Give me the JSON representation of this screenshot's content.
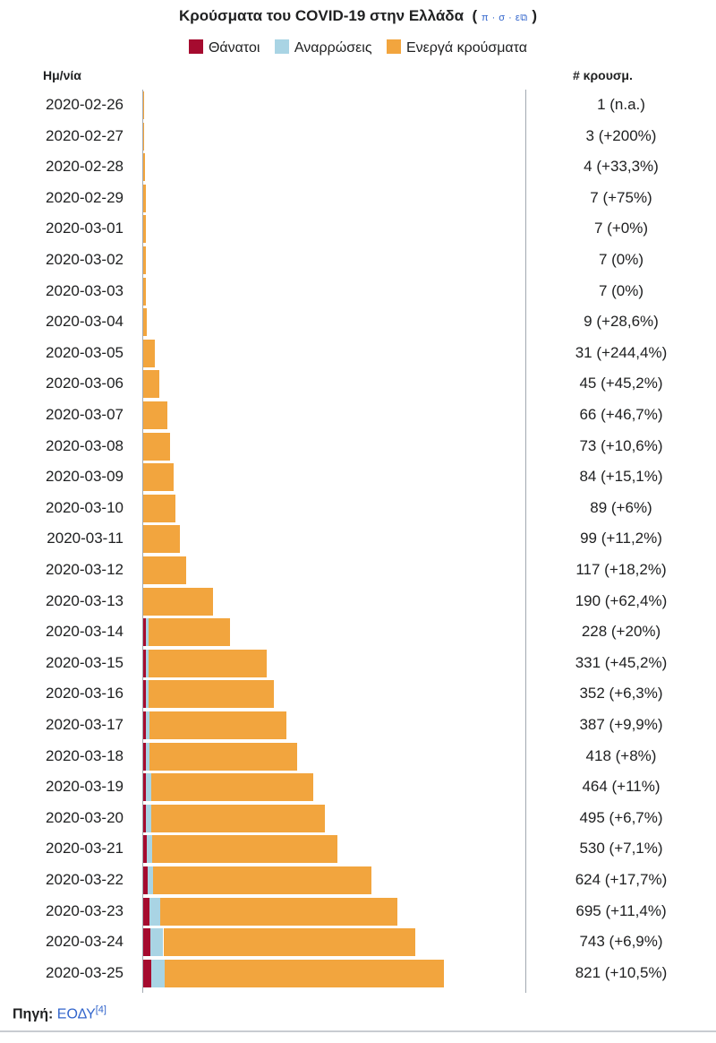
{
  "chart_data": {
    "type": "bar",
    "orientation": "horizontal",
    "stacked": true,
    "title": "Κρούσματα του COVID-19 στην Ελλάδα",
    "template_links": "π · σ · ε",
    "legend": [
      "Θάνατοι",
      "Αναρρώσεις",
      "Ενεργά κρούσματα"
    ],
    "colors": {
      "deaths": "#a50b2f",
      "recoveries": "#a9d4e4",
      "active": "#f2a53e"
    },
    "date_header": "Ημ/νία",
    "cases_header": "# κρουσμ.",
    "xlim": [
      0,
      821
    ],
    "rows": [
      {
        "date": "2020-02-26",
        "deaths": 0,
        "recoveries": 0,
        "active": 1,
        "label": "1 (n.a.)"
      },
      {
        "date": "2020-02-27",
        "deaths": 0,
        "recoveries": 0,
        "active": 3,
        "label": "3 (+200%)"
      },
      {
        "date": "2020-02-28",
        "deaths": 0,
        "recoveries": 0,
        "active": 4,
        "label": "4 (+33,3%)"
      },
      {
        "date": "2020-02-29",
        "deaths": 0,
        "recoveries": 0,
        "active": 7,
        "label": "7 (+75%)"
      },
      {
        "date": "2020-03-01",
        "deaths": 0,
        "recoveries": 0,
        "active": 7,
        "label": "7 (+0%)"
      },
      {
        "date": "2020-03-02",
        "deaths": 0,
        "recoveries": 0,
        "active": 7,
        "label": "7 (0%)"
      },
      {
        "date": "2020-03-03",
        "deaths": 0,
        "recoveries": 0,
        "active": 7,
        "label": "7 (0%)"
      },
      {
        "date": "2020-03-04",
        "deaths": 0,
        "recoveries": 0,
        "active": 9,
        "label": "9 (+28,6%)"
      },
      {
        "date": "2020-03-05",
        "deaths": 0,
        "recoveries": 0,
        "active": 31,
        "label": "31 (+244,4%)"
      },
      {
        "date": "2020-03-06",
        "deaths": 0,
        "recoveries": 0,
        "active": 45,
        "label": "45 (+45,2%)"
      },
      {
        "date": "2020-03-07",
        "deaths": 0,
        "recoveries": 0,
        "active": 66,
        "label": "66 (+46,7%)"
      },
      {
        "date": "2020-03-08",
        "deaths": 0,
        "recoveries": 0,
        "active": 73,
        "label": "73 (+10,6%)"
      },
      {
        "date": "2020-03-09",
        "deaths": 0,
        "recoveries": 0,
        "active": 84,
        "label": "84 (+15,1%)"
      },
      {
        "date": "2020-03-10",
        "deaths": 0,
        "recoveries": 0,
        "active": 89,
        "label": "89 (+6%)"
      },
      {
        "date": "2020-03-11",
        "deaths": 0,
        "recoveries": 0,
        "active": 99,
        "label": "99 (+11,2%)"
      },
      {
        "date": "2020-03-12",
        "deaths": 0,
        "recoveries": 0,
        "active": 117,
        "label": "117 (+18,2%)"
      },
      {
        "date": "2020-03-13",
        "deaths": 0,
        "recoveries": 0,
        "active": 190,
        "label": "190 (+62,4%)"
      },
      {
        "date": "2020-03-14",
        "deaths": 3,
        "recoveries": 3,
        "active": 222,
        "label": "228 (+20%)"
      },
      {
        "date": "2020-03-15",
        "deaths": 3,
        "recoveries": 6,
        "active": 322,
        "label": "331 (+45,2%)"
      },
      {
        "date": "2020-03-16",
        "deaths": 3,
        "recoveries": 8,
        "active": 341,
        "label": "352 (+6,3%)"
      },
      {
        "date": "2020-03-17",
        "deaths": 4,
        "recoveries": 10,
        "active": 373,
        "label": "387 (+9,9%)"
      },
      {
        "date": "2020-03-18",
        "deaths": 5,
        "recoveries": 10,
        "active": 403,
        "label": "418 (+8%)"
      },
      {
        "date": "2020-03-19",
        "deaths": 6,
        "recoveries": 14,
        "active": 444,
        "label": "464 (+11%)"
      },
      {
        "date": "2020-03-20",
        "deaths": 8,
        "recoveries": 14,
        "active": 473,
        "label": "495 (+6,7%)"
      },
      {
        "date": "2020-03-21",
        "deaths": 10,
        "recoveries": 14,
        "active": 506,
        "label": "530 (+7,1%)"
      },
      {
        "date": "2020-03-22",
        "deaths": 13,
        "recoveries": 14,
        "active": 597,
        "label": "624 (+17,7%)"
      },
      {
        "date": "2020-03-23",
        "deaths": 17,
        "recoveries": 29,
        "active": 649,
        "label": "695 (+11,4%)"
      },
      {
        "date": "2020-03-24",
        "deaths": 19,
        "recoveries": 36,
        "active": 688,
        "label": "743 (+6,9%)"
      },
      {
        "date": "2020-03-25",
        "deaths": 22,
        "recoveries": 36,
        "active": 763,
        "label": "821 (+10,5%)"
      }
    ]
  },
  "source": {
    "label": "Πηγή:",
    "link": "ΕΟΔΥ",
    "ref": "[4]"
  }
}
